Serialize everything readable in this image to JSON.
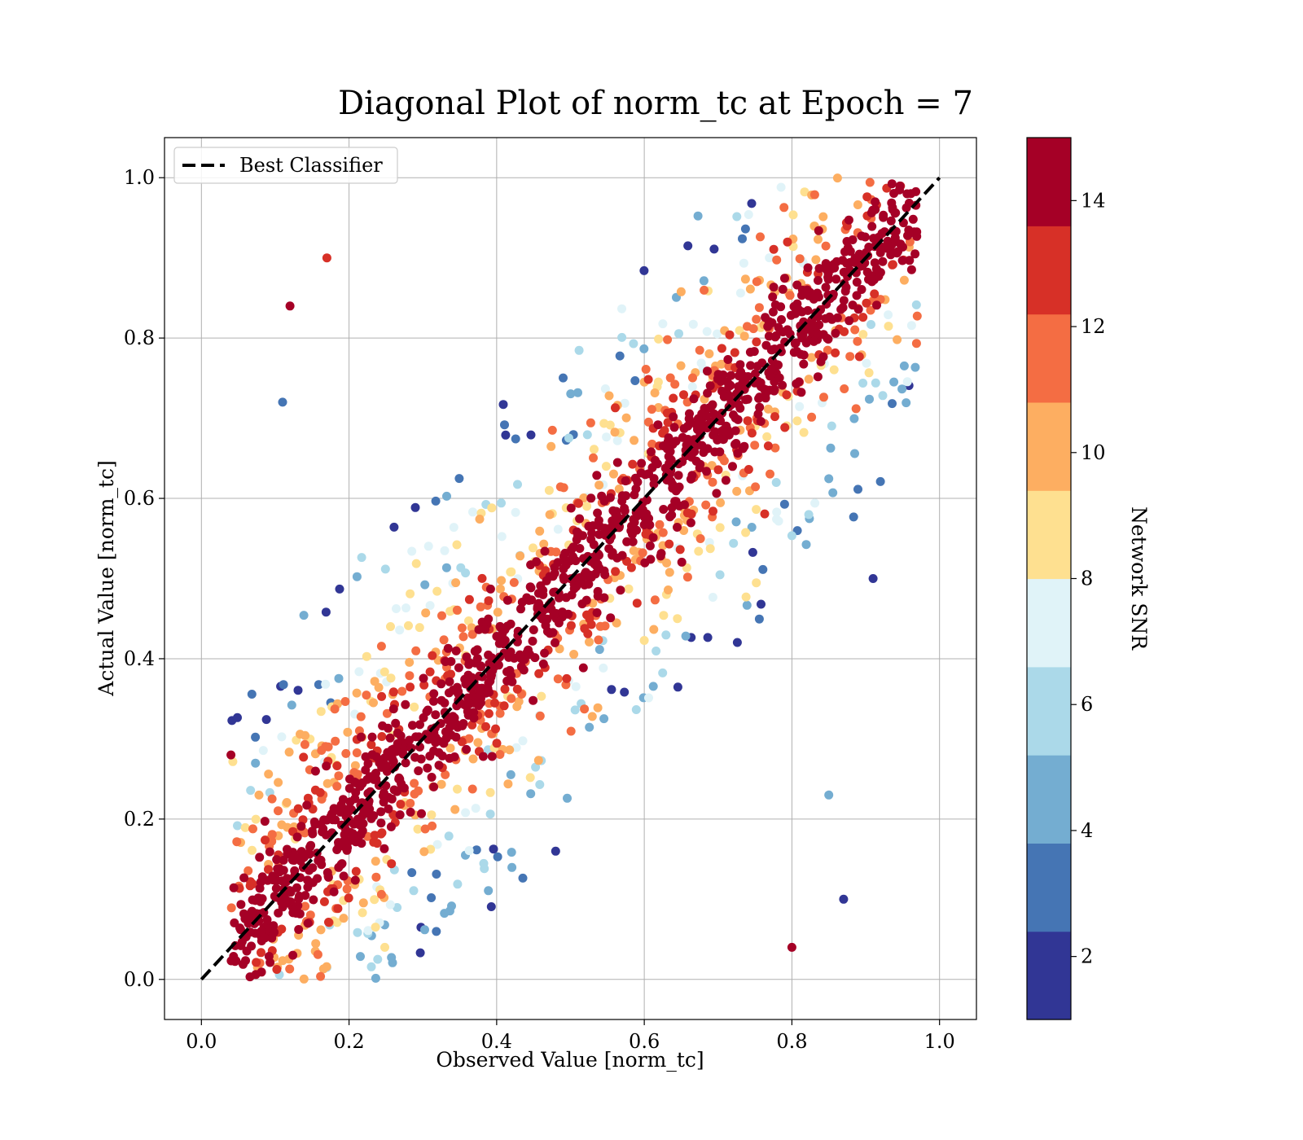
{
  "chart_data": {
    "type": "scatter",
    "title": "Diagonal Plot of norm_tc at Epoch = 7",
    "xlabel": "Observed Value [norm_tc]",
    "ylabel": "Actual Value [norm_tc]",
    "xlim": [
      -0.05,
      1.05
    ],
    "ylim": [
      -0.05,
      1.05
    ],
    "xticks": [
      0.0,
      0.2,
      0.4,
      0.6,
      0.8,
      1.0
    ],
    "yticks": [
      0.0,
      0.2,
      0.4,
      0.6,
      0.8,
      1.0
    ],
    "xtick_labels": [
      "0.0",
      "0.2",
      "0.4",
      "0.6",
      "0.8",
      "1.0"
    ],
    "ytick_labels": [
      "0.0",
      "0.2",
      "0.4",
      "0.6",
      "0.8",
      "1.0"
    ],
    "grid": true,
    "legend": {
      "position": "top-left",
      "entries": [
        "Best Classifier"
      ]
    },
    "reference_line": {
      "name": "Best Classifier",
      "x": [
        0.0,
        1.0
      ],
      "y": [
        0.0,
        1.0
      ],
      "style": "dashed",
      "color": "#000000"
    },
    "colorbar": {
      "label": "Network SNR",
      "range": [
        1,
        15
      ],
      "ticks": [
        2,
        4,
        6,
        8,
        10,
        12,
        14
      ],
      "tick_labels": [
        "2",
        "4",
        "6",
        "8",
        "10",
        "12",
        "14"
      ],
      "levels": [
        {
          "from": 1.0,
          "to": 2.4,
          "color": "#313695"
        },
        {
          "from": 2.4,
          "to": 3.8,
          "color": "#4575b4"
        },
        {
          "from": 3.8,
          "to": 5.2,
          "color": "#74add1"
        },
        {
          "from": 5.2,
          "to": 6.6,
          "color": "#abd9e9"
        },
        {
          "from": 6.6,
          "to": 8.0,
          "color": "#e0f3f8"
        },
        {
          "from": 8.0,
          "to": 9.4,
          "color": "#fee090"
        },
        {
          "from": 9.4,
          "to": 10.8,
          "color": "#fdae61"
        },
        {
          "from": 10.8,
          "to": 12.2,
          "color": "#f46d43"
        },
        {
          "from": 12.2,
          "to": 13.6,
          "color": "#d73027"
        },
        {
          "from": 13.6,
          "to": 15.0,
          "color": "#a50026"
        }
      ]
    },
    "scatter_description": {
      "color_by": "Network SNR",
      "x_range": [
        0.03,
        0.97
      ],
      "y_range": [
        0.0,
        1.0
      ],
      "approx_points": 2000,
      "sample_points": [
        {
          "x": 0.12,
          "y": 0.84,
          "snr": 14
        },
        {
          "x": 0.17,
          "y": 0.9,
          "snr": 13
        },
        {
          "x": 0.11,
          "y": 0.72,
          "snr": 3
        },
        {
          "x": 0.91,
          "y": 0.5,
          "snr": 2
        },
        {
          "x": 0.87,
          "y": 0.1,
          "snr": 2
        },
        {
          "x": 0.85,
          "y": 0.23,
          "snr": 4
        },
        {
          "x": 0.04,
          "y": 0.28,
          "snr": 14
        },
        {
          "x": 0.96,
          "y": 0.92,
          "snr": 12
        },
        {
          "x": 0.8,
          "y": 0.04,
          "snr": 14
        }
      ]
    }
  }
}
